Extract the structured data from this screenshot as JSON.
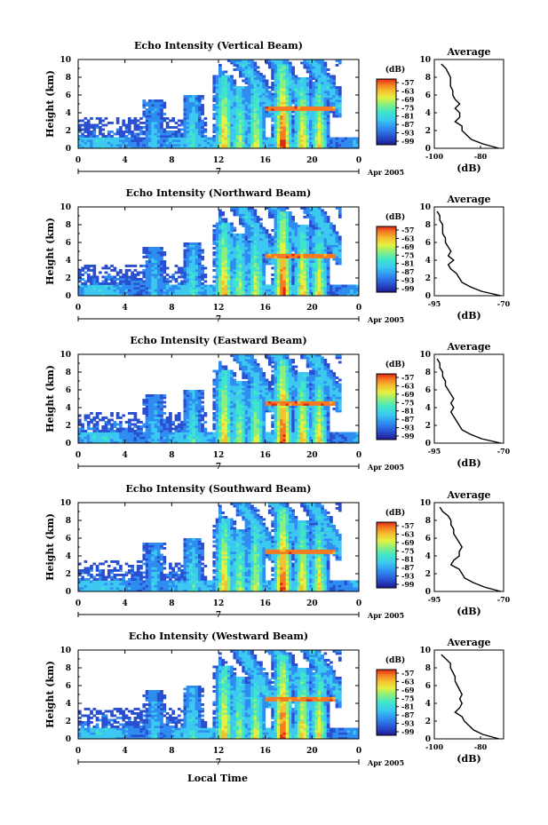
{
  "figure": {
    "xlabel": "Local Time",
    "date_label": "Apr 2005",
    "ylabel": "Height (km)",
    "colorbar_unit": "(dB)",
    "average_title": "Average",
    "average_xlabel": "(dB)",
    "colorbar_ticks": [
      "-57",
      "-63",
      "-69",
      "-75",
      "-81",
      "-87",
      "-93",
      "-99"
    ],
    "colors": [
      "#1e1a90",
      "#2a4fd0",
      "#2f8cf0",
      "#3cc8f0",
      "#40e6c8",
      "#8ef07a",
      "#e6f040",
      "#f5c030",
      "#f57a20",
      "#e02818"
    ]
  },
  "chart_data": [
    {
      "type": "heatmap",
      "title": "Echo Intensity (Vertical Beam)",
      "xlabel": "Local Time",
      "ylabel": "Height (km)",
      "xlim": [
        0,
        24
      ],
      "ylim": [
        0,
        10
      ],
      "xticks": [
        "0",
        "4",
        "8",
        "12",
        "16",
        "20",
        "0"
      ],
      "yticks": [
        "0",
        "2",
        "4",
        "6",
        "8",
        "10"
      ],
      "day_marker": "7",
      "colorbar": {
        "label": "(dB)",
        "range": [
          -99,
          -57
        ]
      },
      "average_profile": {
        "title": "Average",
        "xlabel": "(dB)",
        "xlim": [
          -100,
          -70
        ],
        "xticks": [
          "-100",
          "-80"
        ],
        "height_km": [
          0,
          0.5,
          1,
          1.5,
          2,
          2.5,
          3,
          3.5,
          4,
          4.5,
          5,
          5.5,
          6,
          6.5,
          7,
          7.5,
          8,
          8.5,
          9,
          9.5
        ],
        "values_db": [
          -72,
          -79,
          -84,
          -86,
          -88,
          -88,
          -91,
          -89,
          -89,
          -91,
          -89,
          -91,
          -92,
          -92,
          -93,
          -93,
          -93,
          -94,
          -95,
          -97
        ]
      }
    },
    {
      "type": "heatmap",
      "title": "Echo Intensity (Northward Beam)",
      "xlabel": "Local Time",
      "ylabel": "Height (km)",
      "xlim": [
        0,
        24
      ],
      "ylim": [
        0,
        10
      ],
      "xticks": [
        "0",
        "4",
        "8",
        "12",
        "16",
        "20",
        "0"
      ],
      "yticks": [
        "0",
        "2",
        "4",
        "6",
        "8",
        "10"
      ],
      "day_marker": "7",
      "colorbar": {
        "label": "(dB)",
        "range": [
          -99,
          -57
        ]
      },
      "average_profile": {
        "title": "Average",
        "xlabel": "(dB)",
        "xlim": [
          -95,
          -70
        ],
        "xticks": [
          "-95",
          "-70"
        ],
        "height_km": [
          0,
          0.5,
          1,
          1.5,
          2,
          2.5,
          3,
          3.5,
          4,
          4.5,
          5,
          5.5,
          6,
          6.5,
          7,
          7.5,
          8,
          8.5,
          9,
          9.5
        ],
        "values_db": [
          -71,
          -78,
          -82,
          -85,
          -86,
          -87,
          -89,
          -90,
          -88,
          -90,
          -89,
          -90,
          -91,
          -91,
          -92,
          -92,
          -92,
          -93,
          -93,
          -94
        ]
      }
    },
    {
      "type": "heatmap",
      "title": "Echo Intensity (Eastward Beam)",
      "xlabel": "Local Time",
      "ylabel": "Height (km)",
      "xlim": [
        0,
        24
      ],
      "ylim": [
        0,
        10
      ],
      "xticks": [
        "0",
        "4",
        "8",
        "12",
        "16",
        "20",
        "0"
      ],
      "yticks": [
        "0",
        "2",
        "4",
        "6",
        "8",
        "10"
      ],
      "day_marker": "7",
      "colorbar": {
        "label": "(dB)",
        "range": [
          -99,
          -57
        ]
      },
      "average_profile": {
        "title": "Average",
        "xlabel": "(dB)",
        "xlim": [
          -95,
          -70
        ],
        "xticks": [
          "-95",
          "-70"
        ],
        "height_km": [
          0,
          0.5,
          1,
          1.5,
          2,
          2.5,
          3,
          3.5,
          4,
          4.5,
          5,
          5.5,
          6,
          6.5,
          7,
          7.5,
          8,
          8.5,
          9,
          9.5
        ],
        "values_db": [
          -71,
          -78,
          -82,
          -85,
          -86,
          -87,
          -88,
          -89,
          -88,
          -89,
          -88,
          -89,
          -90,
          -91,
          -91,
          -92,
          -92,
          -93,
          -93,
          -94
        ]
      }
    },
    {
      "type": "heatmap",
      "title": "Echo Intensity (Southward Beam)",
      "xlabel": "Local Time",
      "ylabel": "Height (km)",
      "xlim": [
        0,
        24
      ],
      "ylim": [
        0,
        10
      ],
      "xticks": [
        "0",
        "4",
        "8",
        "12",
        "16",
        "20",
        "0"
      ],
      "yticks": [
        "0",
        "2",
        "4",
        "6",
        "8",
        "10"
      ],
      "day_marker": "7",
      "colorbar": {
        "label": "(dB)",
        "range": [
          -99,
          -57
        ]
      },
      "average_profile": {
        "title": "Average",
        "xlabel": "(dB)",
        "xlim": [
          -95,
          -70
        ],
        "xticks": [
          "-95",
          "-70"
        ],
        "height_km": [
          0,
          0.5,
          1,
          1.5,
          2,
          2.5,
          3,
          3.5,
          4,
          4.5,
          5,
          5.5,
          6,
          6.5,
          7,
          7.5,
          8,
          8.5,
          9,
          9.5
        ],
        "values_db": [
          -71,
          -77,
          -81,
          -84,
          -85,
          -86,
          -89,
          -88,
          -86,
          -86,
          -85,
          -86,
          -87,
          -88,
          -88,
          -89,
          -89,
          -90,
          -92,
          -93
        ]
      }
    },
    {
      "type": "heatmap",
      "title": "Echo Intensity (Westward Beam)",
      "xlabel": "Local Time",
      "ylabel": "Height (km)",
      "xlim": [
        0,
        24
      ],
      "ylim": [
        0,
        10
      ],
      "xticks": [
        "0",
        "4",
        "8",
        "12",
        "16",
        "20",
        "0"
      ],
      "yticks": [
        "0",
        "2",
        "4",
        "6",
        "8",
        "10"
      ],
      "day_marker": "7",
      "colorbar": {
        "label": "(dB)",
        "range": [
          -99,
          -57
        ]
      },
      "average_profile": {
        "title": "Average",
        "xlabel": "(dB)",
        "xlim": [
          -100,
          -70
        ],
        "xticks": [
          "-100",
          "-80"
        ],
        "height_km": [
          0,
          0.5,
          1,
          1.5,
          2,
          2.5,
          3,
          3.5,
          4,
          4.5,
          5,
          5.5,
          6,
          6.5,
          7,
          7.5,
          8,
          8.5,
          9,
          9.5
        ],
        "values_db": [
          -72,
          -79,
          -83,
          -85,
          -87,
          -88,
          -91,
          -89,
          -88,
          -89,
          -88,
          -89,
          -90,
          -91,
          -91,
          -92,
          -93,
          -93,
          -95,
          -97
        ]
      }
    }
  ]
}
